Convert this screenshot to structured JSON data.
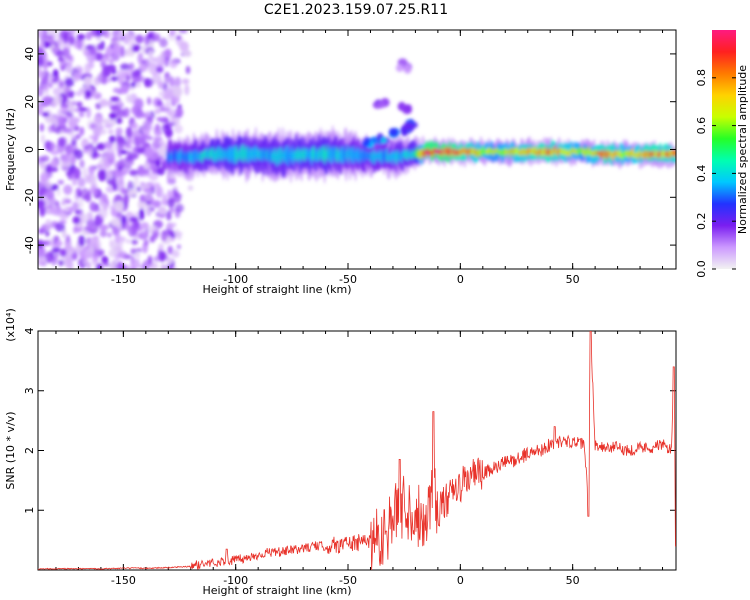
{
  "title": "C2E1.2023.159.07.25.R11",
  "colors": {
    "snr_line": "#e8322a",
    "axis": "#000000",
    "colorbar_stops": [
      "#f2f2f2",
      "#cc99ff",
      "#7a1ef0",
      "#2233ff",
      "#00c8ff",
      "#00ffb0",
      "#26ff26",
      "#c8ff00",
      "#ffd200",
      "#ff7a00",
      "#ff2020",
      "#ff1a80"
    ]
  },
  "chart_data": [
    {
      "type": "heatmap",
      "title": "",
      "xlabel": "Height of straight line (km)",
      "ylabel": "Frequency (Hz)",
      "xlim": [
        -188,
        96
      ],
      "ylim": [
        -50,
        50
      ],
      "xticks": [
        -150,
        -100,
        -50,
        0,
        50
      ],
      "yticks": [
        -40,
        -20,
        0,
        20,
        40
      ],
      "colorbar": {
        "label": "Normalized spectral amplitude",
        "range": [
          0,
          1
        ],
        "ticks": [
          0.0,
          0.2,
          0.4,
          0.6,
          0.8
        ]
      },
      "noise_region": {
        "x_range": [
          -188,
          -125
        ],
        "y_range": [
          -50,
          50
        ],
        "amplitude": 0.1
      },
      "ridge": [
        {
          "x": -130,
          "y": -3,
          "amplitude": 0.3,
          "width": 5
        },
        {
          "x": -120,
          "y": -3,
          "amplitude": 0.35,
          "width": 5
        },
        {
          "x": -110,
          "y": -2,
          "amplitude": 0.4,
          "width": 5
        },
        {
          "x": -100,
          "y": -2,
          "amplitude": 0.4,
          "width": 6
        },
        {
          "x": -90,
          "y": -2,
          "amplitude": 0.38,
          "width": 6
        },
        {
          "x": -80,
          "y": -3,
          "amplitude": 0.38,
          "width": 6
        },
        {
          "x": -70,
          "y": -2,
          "amplitude": 0.4,
          "width": 6
        },
        {
          "x": -60,
          "y": -2,
          "amplitude": 0.4,
          "width": 6
        },
        {
          "x": -50,
          "y": -2,
          "amplitude": 0.35,
          "width": 6
        },
        {
          "x": -40,
          "y": -3,
          "amplitude": 0.35,
          "width": 5
        },
        {
          "x": -30,
          "y": -3,
          "amplitude": 0.35,
          "width": 5
        },
        {
          "x": -20,
          "y": -2,
          "amplitude": 0.4,
          "width": 4
        },
        {
          "x": -15,
          "y": -1,
          "amplitude": 0.9,
          "width": 3
        },
        {
          "x": -5,
          "y": -1,
          "amplitude": 0.9,
          "width": 3
        },
        {
          "x": 5,
          "y": -1,
          "amplitude": 0.75,
          "width": 3
        },
        {
          "x": 15,
          "y": -1,
          "amplitude": 0.6,
          "width": 3
        },
        {
          "x": 25,
          "y": -1,
          "amplitude": 0.7,
          "width": 3
        },
        {
          "x": 35,
          "y": -1,
          "amplitude": 0.8,
          "width": 3
        },
        {
          "x": 45,
          "y": -1,
          "amplitude": 0.75,
          "width": 3
        },
        {
          "x": 55,
          "y": -1,
          "amplitude": 0.6,
          "width": 3
        },
        {
          "x": 65,
          "y": -2,
          "amplitude": 0.8,
          "width": 3
        },
        {
          "x": 75,
          "y": -2,
          "amplitude": 0.65,
          "width": 3
        },
        {
          "x": 85,
          "y": -2,
          "amplitude": 0.8,
          "width": 3
        },
        {
          "x": 95,
          "y": -2,
          "amplitude": 0.75,
          "width": 3
        }
      ],
      "side_branch": [
        {
          "x": -40,
          "y": 3,
          "amplitude": 0.3
        },
        {
          "x": -35,
          "y": 5,
          "amplitude": 0.3
        },
        {
          "x": -30,
          "y": 6,
          "amplitude": 0.3
        },
        {
          "x": -25,
          "y": 8,
          "amplitude": 0.3
        },
        {
          "x": -22,
          "y": 10,
          "amplitude": 0.25
        },
        {
          "x": -35,
          "y": 20,
          "amplitude": 0.15
        },
        {
          "x": -25,
          "y": 17,
          "amplitude": 0.15
        },
        {
          "x": -25,
          "y": 35,
          "amplitude": 0.12
        }
      ]
    },
    {
      "type": "line",
      "title": "",
      "xlabel": "Height of straight line (km)",
      "ylabel": "SNR (10 * v/v)",
      "y_multiplier": "(x10⁴)",
      "xlim": [
        -188,
        96
      ],
      "ylim": [
        0,
        4
      ],
      "xticks": [
        -150,
        -100,
        -50,
        0,
        50
      ],
      "yticks": [
        1,
        2,
        3,
        4
      ],
      "series": [
        {
          "x": [
            -188,
            -175,
            -160,
            -150,
            -140,
            -130,
            -125,
            -120,
            -115,
            -110,
            -105,
            -100,
            -95,
            -90,
            -85,
            -80,
            -75,
            -70,
            -65,
            -60,
            -55,
            -50,
            -45,
            -40,
            -35,
            -30,
            -28,
            -25,
            -22,
            -20,
            -15,
            -12,
            -10,
            -5,
            0,
            5,
            10,
            15,
            20,
            25,
            30,
            35,
            40,
            45,
            50,
            55,
            57,
            58,
            60,
            65,
            70,
            75,
            80,
            85,
            90,
            94,
            95,
            96
          ],
          "y": [
            0.02,
            0.02,
            0.02,
            0.03,
            0.03,
            0.04,
            0.05,
            0.06,
            0.1,
            0.12,
            0.15,
            0.17,
            0.2,
            0.25,
            0.3,
            0.3,
            0.33,
            0.36,
            0.4,
            0.4,
            0.42,
            0.45,
            0.45,
            0.5,
            0.6,
            0.8,
            1.0,
            1.1,
            1.0,
            0.9,
            0.9,
            1.4,
            1.0,
            1.2,
            1.4,
            1.6,
            1.6,
            1.7,
            1.8,
            1.85,
            1.95,
            2.0,
            2.1,
            2.15,
            2.15,
            2.1,
            1.2,
            4.0,
            2.1,
            2.05,
            2.05,
            2.0,
            2.05,
            2.05,
            2.1,
            2.0,
            3.4,
            0.5
          ]
        }
      ],
      "spikes": [
        {
          "x": -12,
          "y": 2.65
        },
        {
          "x": -27,
          "y": 1.85
        },
        {
          "x": -33,
          "y": 0.65
        },
        {
          "x": -104,
          "y": 0.35
        },
        {
          "x": 42,
          "y": 2.4
        },
        {
          "x": 58,
          "y": 4.0
        },
        {
          "x": 57,
          "y": 0.9
        },
        {
          "x": 95,
          "y": 3.4
        },
        {
          "x": 96,
          "y": 0.4
        }
      ]
    }
  ]
}
